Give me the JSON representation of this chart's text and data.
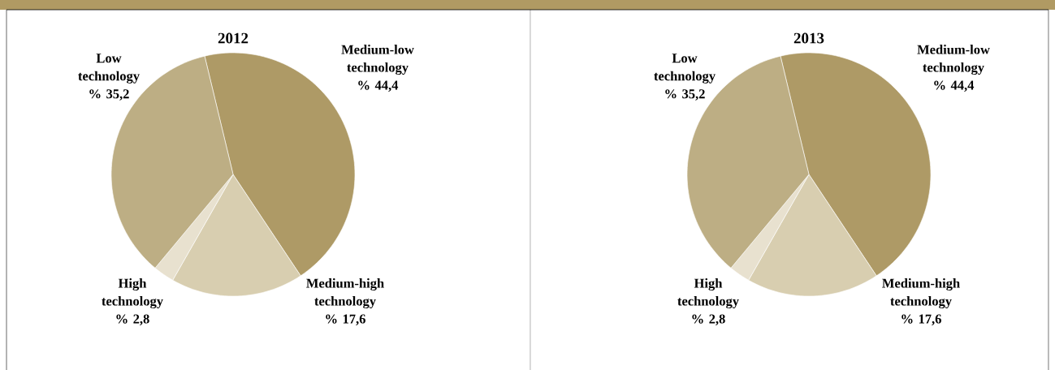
{
  "chart_data": [
    {
      "type": "pie",
      "title": "2012",
      "categories": [
        "Medium-low technology",
        "Medium-high technology",
        "High technology",
        "Low technology"
      ],
      "values": [
        44.4,
        17.6,
        2.8,
        35.2
      ],
      "value_labels": [
        "% 44,4",
        "% 17,6",
        "% 2,8",
        "% 35,2"
      ],
      "colors": [
        "#ae9a66",
        "#d8ceb0",
        "#e8e1cf",
        "#bdae84"
      ]
    },
    {
      "type": "pie",
      "title": "2013",
      "categories": [
        "Medium-low technology",
        "Medium-high technology",
        "High technology",
        "Low technology"
      ],
      "values": [
        44.4,
        17.6,
        2.8,
        35.2
      ],
      "value_labels": [
        "% 44,4",
        "% 17,6",
        "% 2,8",
        "% 35,2"
      ],
      "colors": [
        "#ae9a66",
        "#d8ceb0",
        "#e8e1cf",
        "#bdae84"
      ]
    }
  ]
}
